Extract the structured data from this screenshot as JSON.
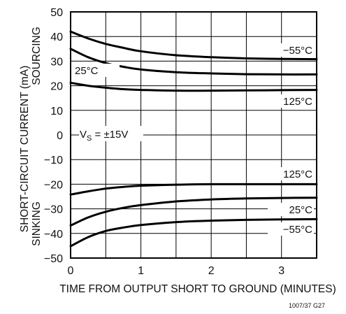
{
  "chart_data": {
    "type": "line",
    "title": "",
    "xlabel": "TIME FROM OUTPUT SHORT TO GROUND (MINUTES)",
    "ylabel": "SHORT-CIRCUIT CURRENT (mA)",
    "ylabel_upper": "SOURCING",
    "ylabel_lower": "SINKING",
    "xlim": [
      0,
      3.5
    ],
    "ylim": [
      -50,
      50
    ],
    "xticks": [
      "0",
      "1",
      "2",
      "3"
    ],
    "yticks": [
      "50",
      "40",
      "30",
      "20",
      "10",
      "0",
      "−10",
      "−20",
      "−30",
      "−40",
      "−50"
    ],
    "grid": true,
    "condition_prefix": "V",
    "condition_sub": "S",
    "condition_suffix": " = ±15V",
    "figure_id": "1007/37 G27",
    "series": [
      {
        "name": "−55°C",
        "group": "sourcing",
        "x": [
          0,
          0.25,
          0.5,
          0.75,
          1.0,
          1.5,
          2.0,
          2.5,
          3.0,
          3.5
        ],
        "values": [
          42,
          39.2,
          37,
          35.4,
          34,
          32.4,
          31.6,
          31.1,
          30.9,
          30.8
        ]
      },
      {
        "name": "25°C",
        "group": "sourcing",
        "x": [
          0,
          0.25,
          0.5,
          0.75,
          1.0,
          1.5,
          2.0,
          2.5,
          3.0,
          3.5
        ],
        "values": [
          35,
          31.6,
          29.2,
          27.7,
          26.6,
          25.5,
          25.0,
          24.7,
          24.6,
          24.6
        ]
      },
      {
        "name": "125°C",
        "group": "sourcing",
        "x": [
          0,
          0.25,
          0.5,
          0.75,
          1.0,
          1.5,
          2.0,
          2.5,
          3.0,
          3.5
        ],
        "values": [
          21.2,
          20.0,
          19.2,
          18.6,
          18.3,
          18.0,
          18.0,
          18.1,
          18.2,
          18.3
        ]
      },
      {
        "name": "125°C",
        "group": "sinking",
        "x": [
          0,
          0.25,
          0.5,
          0.75,
          1.0,
          1.5,
          2.0,
          2.5,
          3.0,
          3.5
        ],
        "values": [
          -24.2,
          -22.9,
          -21.8,
          -21.1,
          -20.6,
          -20.2,
          -20.0,
          -20.0,
          -20.0,
          -20.0
        ]
      },
      {
        "name": "25°C",
        "group": "sinking",
        "x": [
          0,
          0.25,
          0.5,
          0.75,
          1.0,
          1.5,
          2.0,
          2.5,
          3.0,
          3.5
        ],
        "values": [
          -36.8,
          -33.5,
          -31.2,
          -29.6,
          -28.5,
          -27.0,
          -26.2,
          -25.8,
          -25.6,
          -25.5
        ]
      },
      {
        "name": "−55°C",
        "group": "sinking",
        "x": [
          0,
          0.25,
          0.5,
          0.75,
          1.0,
          1.5,
          2.0,
          2.5,
          3.0,
          3.5
        ],
        "values": [
          -45.2,
          -41.5,
          -39.0,
          -37.6,
          -36.6,
          -35.4,
          -34.8,
          -34.5,
          -34.3,
          -34.2
        ]
      }
    ]
  }
}
